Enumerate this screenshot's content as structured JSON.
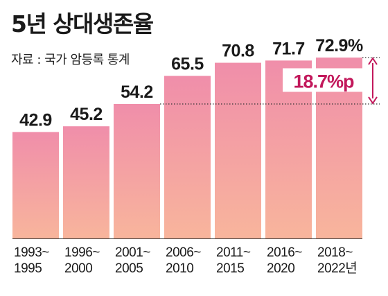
{
  "title": "5년 상대생존율",
  "source": "자료 : 국가 암등록 통계",
  "chart_data": {
    "type": "bar",
    "categories": [
      [
        "1993~",
        "1995"
      ],
      [
        "1996~",
        "2000"
      ],
      [
        "2001~",
        "2005"
      ],
      [
        "2006~",
        "2010"
      ],
      [
        "2011~",
        "2015"
      ],
      [
        "2016~",
        "2020"
      ],
      [
        "2018~",
        "2022년"
      ]
    ],
    "values": [
      42.9,
      45.2,
      54.2,
      65.5,
      70.8,
      71.7,
      72.9
    ],
    "value_labels": [
      "42.9",
      "45.2",
      "54.2",
      "65.5",
      "70.8",
      "71.7",
      "72.9%"
    ],
    "annotation": {
      "text": "18.7%p",
      "from_value": 54.2,
      "to_value": 72.9,
      "color": "#c2185b"
    },
    "colors": {
      "bar_top": "#f08eaa",
      "bar_bottom": "#f8b59c",
      "accent": "#c2185b"
    }
  }
}
